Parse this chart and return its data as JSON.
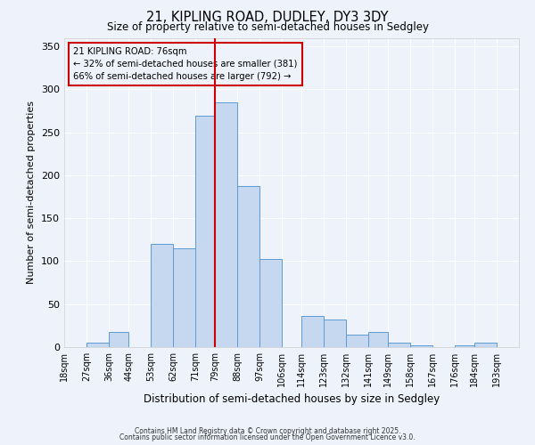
{
  "title1": "21, KIPLING ROAD, DUDLEY, DY3 3DY",
  "title2": "Size of property relative to semi-detached houses in Sedgley",
  "xlabel": "Distribution of semi-detached houses by size in Sedgley",
  "ylabel": "Number of semi-detached properties",
  "bin_labels": [
    "18sqm",
    "27sqm",
    "36sqm",
    "44sqm",
    "53sqm",
    "62sqm",
    "71sqm",
    "79sqm",
    "88sqm",
    "97sqm",
    "106sqm",
    "114sqm",
    "123sqm",
    "132sqm",
    "141sqm",
    "149sqm",
    "158sqm",
    "167sqm",
    "176sqm",
    "184sqm",
    "193sqm"
  ],
  "bin_edges": [
    18,
    27,
    36,
    44,
    53,
    62,
    71,
    79,
    88,
    97,
    106,
    114,
    123,
    132,
    141,
    149,
    158,
    167,
    176,
    184,
    193,
    202
  ],
  "bar_heights": [
    0,
    5,
    18,
    0,
    120,
    115,
    269,
    285,
    188,
    103,
    0,
    36,
    32,
    14,
    18,
    5,
    2,
    0,
    2,
    5,
    0
  ],
  "bar_color": "#c5d8f0",
  "bar_edgecolor": "#5b9bd5",
  "vline_x": 79,
  "vline_color": "#cc0000",
  "annotation_title": "21 KIPLING ROAD: 76sqm",
  "annotation_line1": "← 32% of semi-detached houses are smaller (381)",
  "annotation_line2": "66% of semi-detached houses are larger (792) →",
  "annotation_box_color": "#cc0000",
  "ylim": [
    0,
    360
  ],
  "yticks": [
    0,
    50,
    100,
    150,
    200,
    250,
    300,
    350
  ],
  "footer1": "Contains HM Land Registry data © Crown copyright and database right 2025.",
  "footer2": "Contains public sector information licensed under the Open Government Licence v3.0.",
  "bg_color": "#eef2fb",
  "grid_color": "#ffffff",
  "spine_color": "#cccccc"
}
